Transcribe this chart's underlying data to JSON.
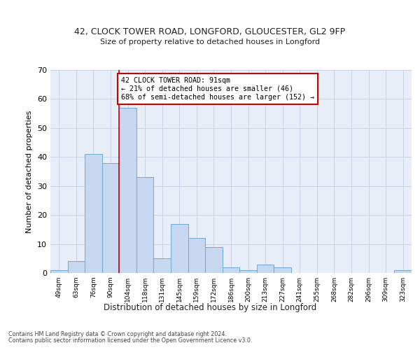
{
  "title1": "42, CLOCK TOWER ROAD, LONGFORD, GLOUCESTER, GL2 9FP",
  "title2": "Size of property relative to detached houses in Longford",
  "xlabel": "Distribution of detached houses by size in Longford",
  "ylabel": "Number of detached properties",
  "categories": [
    "49sqm",
    "63sqm",
    "76sqm",
    "90sqm",
    "104sqm",
    "118sqm",
    "131sqm",
    "145sqm",
    "159sqm",
    "172sqm",
    "186sqm",
    "200sqm",
    "213sqm",
    "227sqm",
    "241sqm",
    "255sqm",
    "268sqm",
    "282sqm",
    "296sqm",
    "309sqm",
    "323sqm"
  ],
  "values": [
    1,
    4,
    41,
    38,
    57,
    33,
    5,
    17,
    12,
    9,
    2,
    1,
    3,
    2,
    0,
    0,
    0,
    0,
    0,
    0,
    1
  ],
  "bar_color": "#c5d8f0",
  "bar_edge_color": "#6aaad4",
  "grid_color": "#c8d4e8",
  "background_color": "#e8eef8",
  "vline_x": 3.5,
  "vline_color": "#cc0000",
  "annotation_text": "42 CLOCK TOWER ROAD: 91sqm\n← 21% of detached houses are smaller (46)\n68% of semi-detached houses are larger (152) →",
  "annotation_box_color": "#ffffff",
  "annotation_box_edge_color": "#cc0000",
  "ylim": [
    0,
    70
  ],
  "yticks": [
    0,
    10,
    20,
    30,
    40,
    50,
    60,
    70
  ],
  "footer1": "Contains HM Land Registry data © Crown copyright and database right 2024.",
  "footer2": "Contains public sector information licensed under the Open Government Licence v3.0."
}
